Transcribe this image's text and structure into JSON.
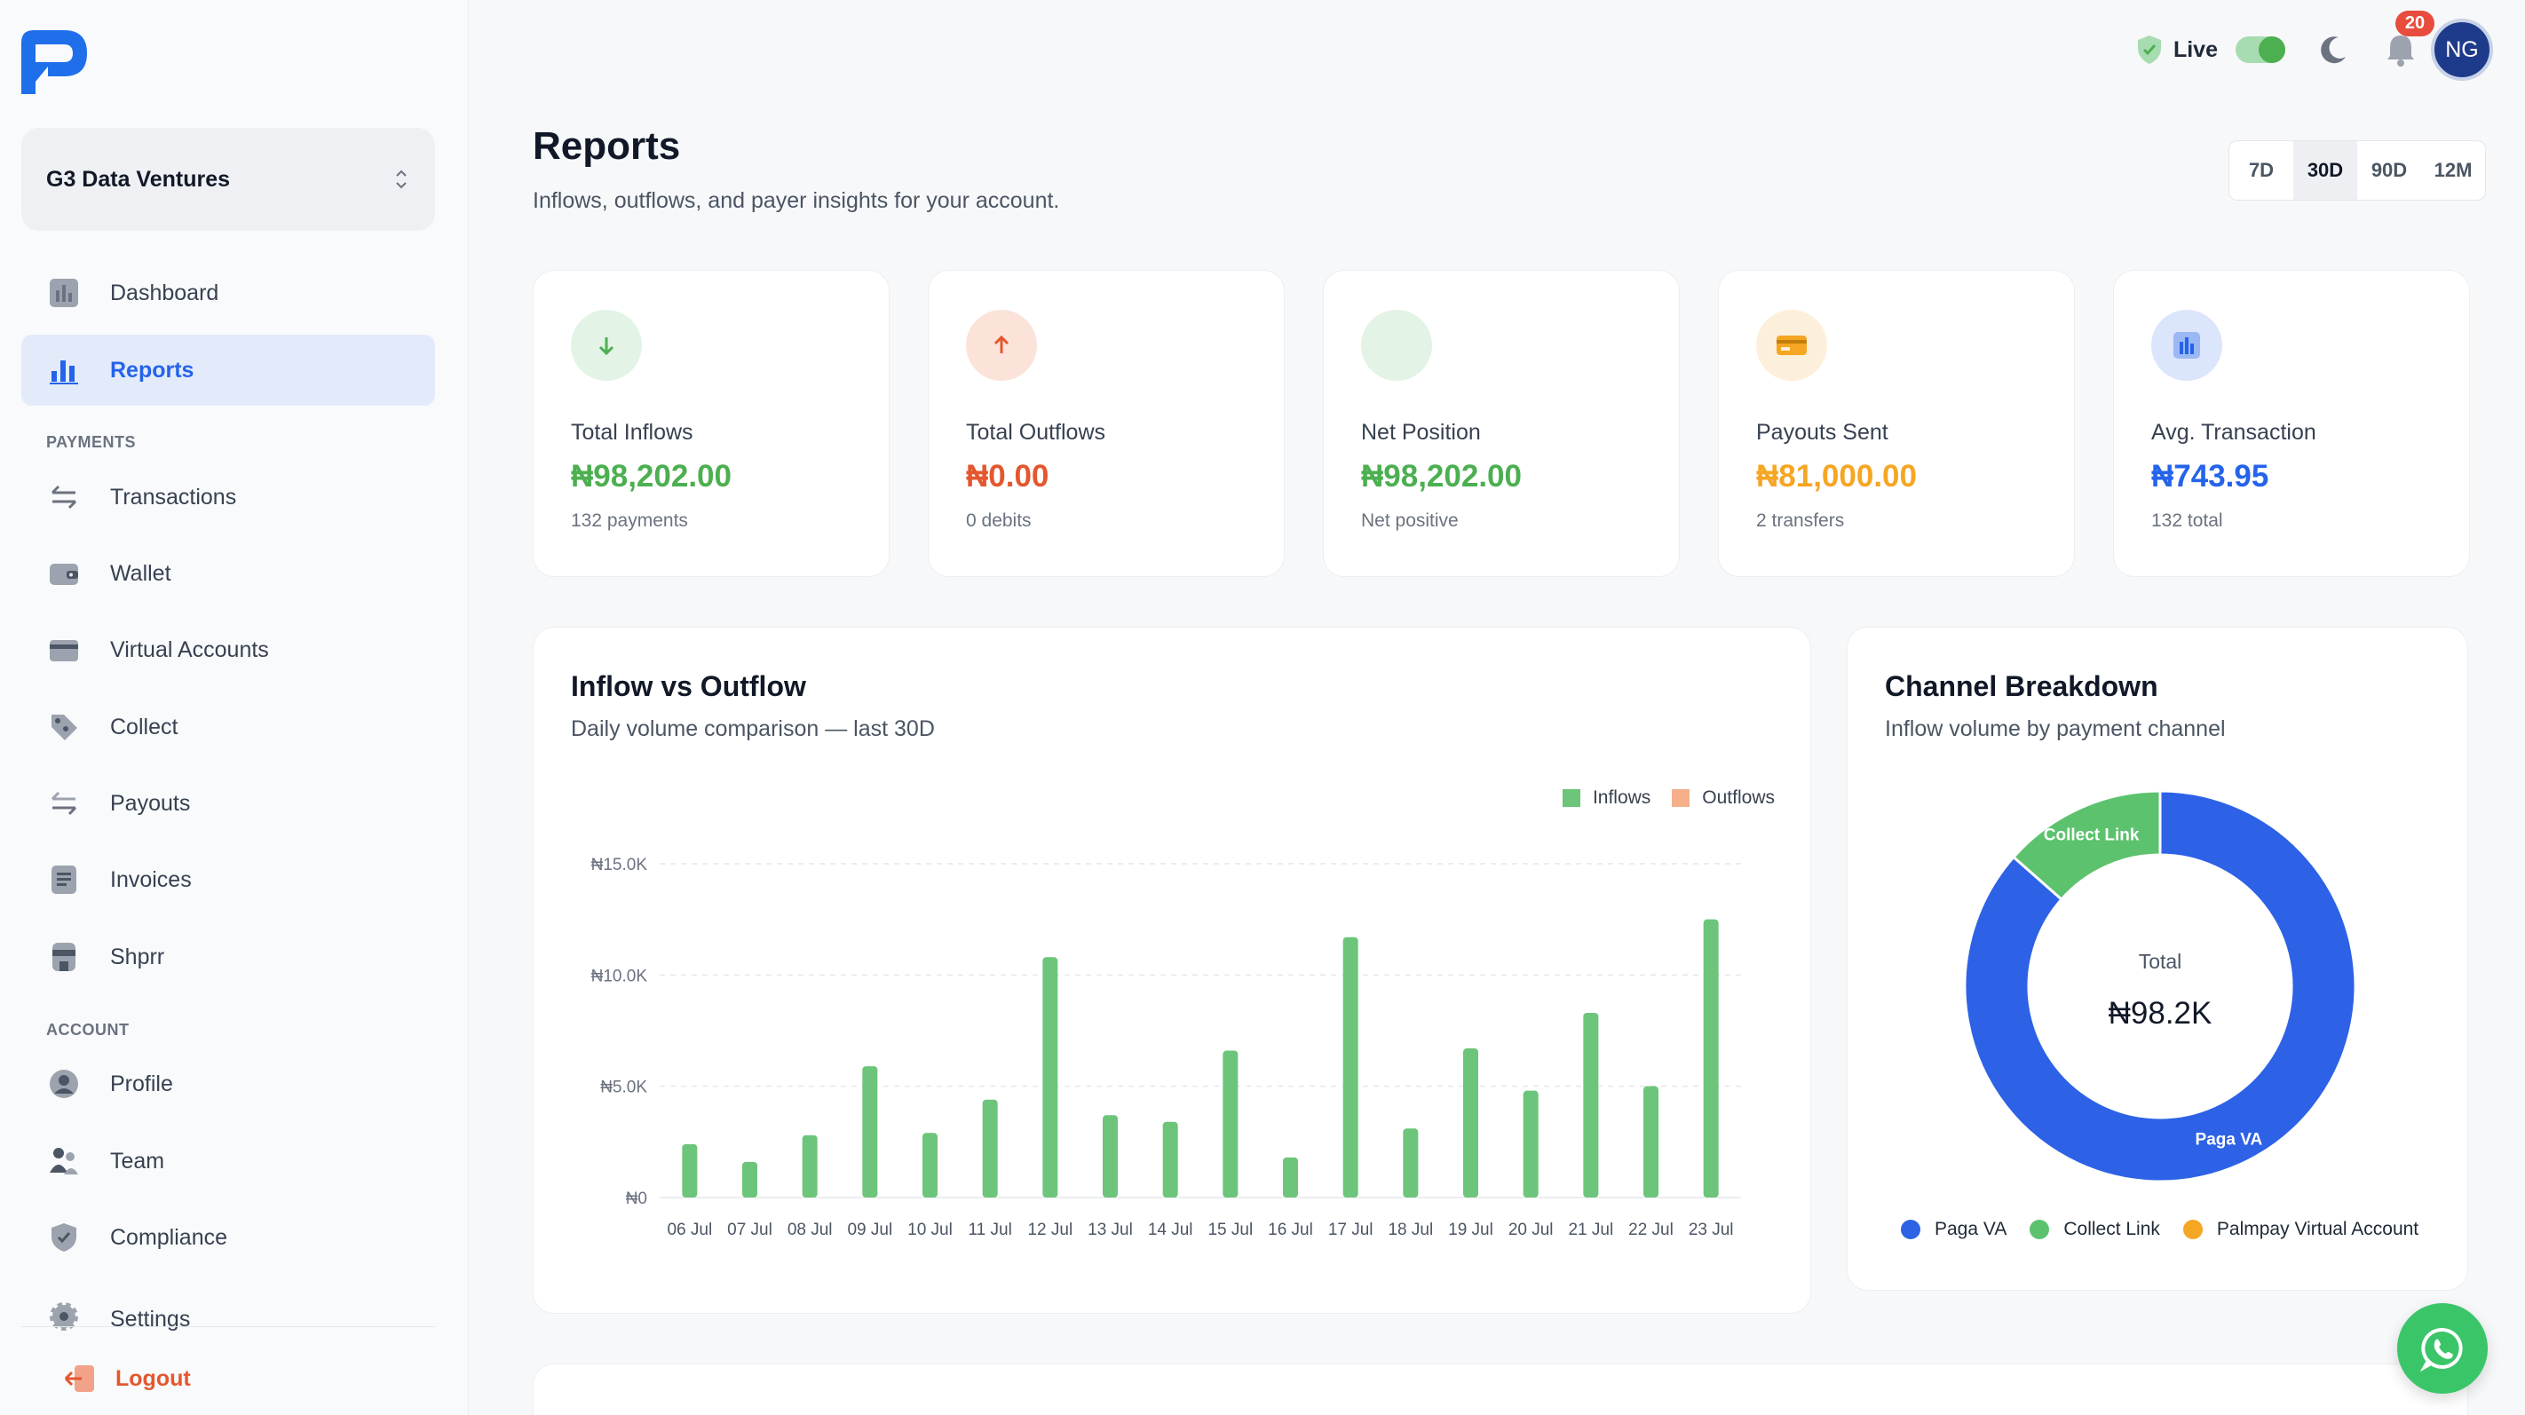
{
  "sidebar": {
    "org_name": "G3 Data Ventures",
    "items": [
      {
        "label": "Dashboard",
        "icon": "dashboard-icon"
      },
      {
        "label": "Reports",
        "icon": "bar-chart-icon",
        "active": true
      },
      {
        "label": "Transactions",
        "icon": "transfer-arrows-icon"
      },
      {
        "label": "Wallet",
        "icon": "wallet-icon"
      },
      {
        "label": "Virtual Accounts",
        "icon": "card-icon"
      },
      {
        "label": "Collect",
        "icon": "tag-icon"
      },
      {
        "label": "Payouts",
        "icon": "payout-arrows-icon"
      },
      {
        "label": "Invoices",
        "icon": "document-icon"
      },
      {
        "label": "Shprr",
        "icon": "store-icon"
      },
      {
        "label": "Profile",
        "icon": "user-icon"
      },
      {
        "label": "Team",
        "icon": "team-icon"
      },
      {
        "label": "Compliance",
        "icon": "shield-icon"
      },
      {
        "label": "Settings",
        "icon": "gear-icon"
      }
    ],
    "section_payments": "PAYMENTS",
    "section_account": "ACCOUNT",
    "logout_label": "Logout"
  },
  "topbar": {
    "live_label": "Live",
    "notification_count": "20",
    "avatar_initials": "NG"
  },
  "header": {
    "title": "Reports",
    "subtitle": "Inflows, outflows, and payer insights for your account.",
    "periods": [
      "7D",
      "30D",
      "90D",
      "12M"
    ],
    "active_period": "30D"
  },
  "stats": [
    {
      "label": "Total Inflows",
      "value": "₦98,202.00",
      "note": "132 payments",
      "color": "#4caf50",
      "icon": "arrow-down-icon"
    },
    {
      "label": "Total Outflows",
      "value": "₦0.00",
      "note": "0 debits",
      "color": "#e4572e",
      "icon": "arrow-up-icon"
    },
    {
      "label": "Net Position",
      "value": "₦98,202.00",
      "note": "Net positive",
      "color": "#4caf50",
      "icon": "net-icon"
    },
    {
      "label": "Payouts Sent",
      "value": "₦81,000.00",
      "note": "2 transfers",
      "color": "#f5a623",
      "icon": "payout-card-icon"
    },
    {
      "label": "Avg. Transaction",
      "value": "₦743.95",
      "note": "132 total",
      "color": "#2563eb",
      "icon": "bar-chart-icon"
    }
  ],
  "inflow_chart": {
    "title": "Inflow vs Outflow",
    "subtitle": "Daily volume comparison — last 30D"
  },
  "channel_chart": {
    "title": "Channel Breakdown",
    "subtitle": "Inflow volume by payment channel",
    "center_label": "Total",
    "center_value": "₦98.2K"
  },
  "chart_data": [
    {
      "type": "bar",
      "categories": [
        "06 Jul",
        "07 Jul",
        "08 Jul",
        "09 Jul",
        "10 Jul",
        "11 Jul",
        "12 Jul",
        "13 Jul",
        "14 Jul",
        "15 Jul",
        "16 Jul",
        "17 Jul",
        "18 Jul",
        "19 Jul",
        "20 Jul",
        "21 Jul",
        "22 Jul",
        "23 Jul"
      ],
      "series": [
        {
          "name": "Inflows",
          "color": "#6cc57a",
          "values": [
            2400,
            1600,
            2800,
            5900,
            2900,
            4400,
            10800,
            3700,
            3400,
            6600,
            1800,
            11700,
            3100,
            6700,
            4800,
            8300,
            5000,
            12500
          ]
        },
        {
          "name": "Outflows",
          "color": "#f5b08a",
          "values": [
            0,
            0,
            0,
            0,
            0,
            0,
            0,
            0,
            0,
            0,
            0,
            0,
            0,
            0,
            0,
            0,
            0,
            0
          ]
        }
      ],
      "yticks": [
        "₦0",
        "₦5.0K",
        "₦10.0K",
        "₦15.0K"
      ],
      "ylim": [
        0,
        15000
      ],
      "grid": true,
      "legend": "top-right"
    },
    {
      "type": "pie",
      "donut": true,
      "categories": [
        "Paga VA",
        "Collect Link",
        "Palmpay Virtual Account"
      ],
      "values": [
        86.5,
        13.5,
        0
      ],
      "colors": [
        "#2d62e6",
        "#5cc26e",
        "#f5a623"
      ],
      "legend": "bottom"
    }
  ]
}
